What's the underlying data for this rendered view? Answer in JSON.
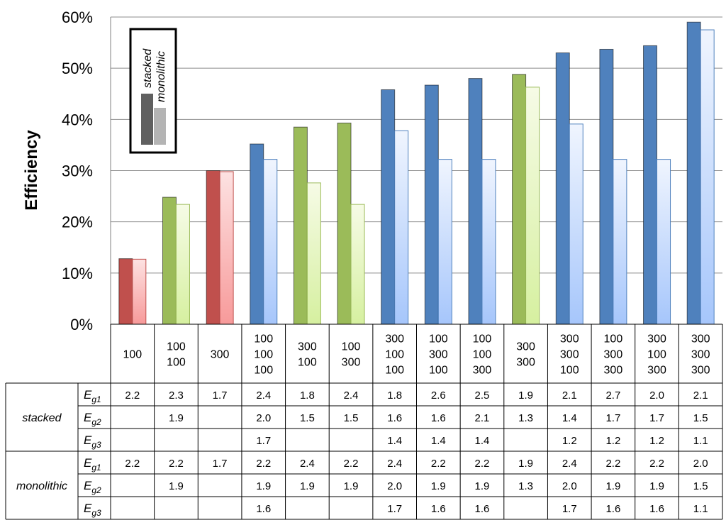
{
  "chart_data": {
    "type": "bar",
    "ylabel": "Efficiency",
    "ylim": [
      0,
      60
    ],
    "y_unit": "%",
    "y_ticks": [
      "0%",
      "10%",
      "20%",
      "30%",
      "40%",
      "50%",
      "60%"
    ],
    "grid": true,
    "categories": [
      [
        "100"
      ],
      [
        "100",
        "100"
      ],
      [
        "300"
      ],
      [
        "100",
        "100",
        "100"
      ],
      [
        "300",
        "100"
      ],
      [
        "100",
        "300"
      ],
      [
        "300",
        "100",
        "100"
      ],
      [
        "100",
        "300",
        "100"
      ],
      [
        "100",
        "100",
        "300"
      ],
      [
        "300",
        "300"
      ],
      [
        "300",
        "300",
        "100"
      ],
      [
        "100",
        "300",
        "300"
      ],
      [
        "300",
        "100",
        "300"
      ],
      [
        "300",
        "300",
        "300"
      ]
    ],
    "junctions": [
      1,
      2,
      1,
      3,
      2,
      2,
      3,
      3,
      3,
      2,
      3,
      3,
      3,
      3
    ],
    "series": [
      {
        "name": "stacked",
        "values": [
          12.8,
          24.8,
          30.0,
          35.2,
          38.5,
          39.3,
          45.8,
          46.7,
          48.0,
          48.8,
          53.0,
          53.7,
          54.4,
          59.0
        ]
      },
      {
        "name": "monolithic",
        "values": [
          12.7,
          23.4,
          29.8,
          32.2,
          27.6,
          23.4,
          37.8,
          32.2,
          32.2,
          46.3,
          39.1,
          32.2,
          32.2,
          57.5
        ]
      }
    ],
    "legend": {
      "placement": "top-left",
      "entries": [
        "stacked",
        "monolithic"
      ]
    },
    "colors": {
      "one_junction": "#c0504d",
      "two_junction": "#9bbb59",
      "three_junction": "#4f81bd",
      "legend_stacked": "#606060",
      "legend_monolithic": "#b4b4b4",
      "grid": "#8c8c8c"
    },
    "bandgap_table": {
      "groups": [
        {
          "name": "stacked",
          "rows": [
            {
              "param": "E",
              "sub": "g1",
              "values": [
                "2.2",
                "2.3",
                "1.7",
                "2.4",
                "1.8",
                "2.4",
                "1.8",
                "2.6",
                "2.5",
                "1.9",
                "2.1",
                "2.7",
                "2.0",
                "2.1"
              ]
            },
            {
              "param": "E",
              "sub": "g2",
              "values": [
                "",
                "1.9",
                "",
                "2.0",
                "1.5",
                "1.5",
                "1.6",
                "1.6",
                "2.1",
                "1.3",
                "1.4",
                "1.7",
                "1.7",
                "1.5"
              ]
            },
            {
              "param": "E",
              "sub": "g3",
              "values": [
                "",
                "",
                "",
                "1.7",
                "",
                "",
                "1.4",
                "1.4",
                "1.4",
                "",
                "1.2",
                "1.2",
                "1.2",
                "1.1"
              ]
            }
          ]
        },
        {
          "name": "monolithic",
          "rows": [
            {
              "param": "E",
              "sub": "g1",
              "values": [
                "2.2",
                "2.2",
                "1.7",
                "2.2",
                "2.4",
                "2.2",
                "2.4",
                "2.2",
                "2.2",
                "1.9",
                "2.4",
                "2.2",
                "2.2",
                "2.0"
              ]
            },
            {
              "param": "E",
              "sub": "g2",
              "values": [
                "",
                "1.9",
                "",
                "1.9",
                "1.9",
                "1.9",
                "2.0",
                "1.9",
                "1.9",
                "1.3",
                "2.0",
                "1.9",
                "1.9",
                "1.5"
              ]
            },
            {
              "param": "E",
              "sub": "g3",
              "values": [
                "",
                "",
                "",
                "1.6",
                "",
                "",
                "1.7",
                "1.6",
                "1.6",
                "",
                "1.7",
                "1.6",
                "1.6",
                "1.1"
              ]
            }
          ]
        }
      ]
    }
  }
}
